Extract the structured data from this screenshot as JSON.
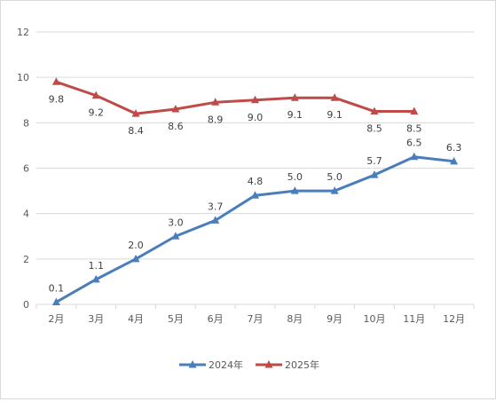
{
  "chart_data": {
    "type": "line",
    "categories": [
      "2月",
      "3月",
      "4月",
      "5月",
      "6月",
      "7月",
      "8月",
      "9月",
      "10月",
      "11月",
      "12月"
    ],
    "ylim": [
      0,
      12
    ],
    "yticks": [
      0,
      2,
      4,
      6,
      8,
      10,
      12
    ],
    "grid": true,
    "legend_position": "bottom",
    "series": [
      {
        "name": "2024年",
        "color": "#4a7ebb",
        "values": [
          0.1,
          1.1,
          2.0,
          3.0,
          3.7,
          4.8,
          5.0,
          5.0,
          5.7,
          6.5,
          6.3
        ],
        "labels": [
          "0.1",
          "1.1",
          "2.0",
          "3.0",
          "3.7",
          "4.8",
          "5.0",
          "5.0",
          "5.7",
          "6.5",
          "6.3"
        ]
      },
      {
        "name": "2025年",
        "color": "#be4b48",
        "values": [
          9.8,
          9.2,
          8.4,
          8.6,
          8.9,
          9.0,
          9.1,
          9.1,
          8.5,
          8.5,
          null
        ],
        "labels": [
          "9.8",
          "9.2",
          "8.4",
          "8.6",
          "8.9",
          "9.0",
          "9.1",
          "9.1",
          "8.5",
          "8.5",
          ""
        ]
      }
    ]
  }
}
